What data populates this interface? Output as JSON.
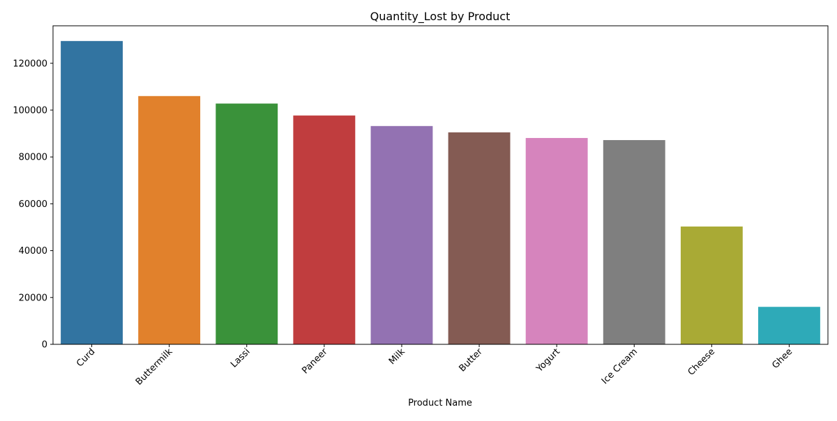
{
  "chart_data": {
    "type": "bar",
    "title": "Quantity_Lost by Product",
    "xlabel": "Product Name",
    "ylabel": "",
    "categories": [
      "Curd",
      "Buttermilk",
      "Lassi",
      "Paneer",
      "Milk",
      "Butter",
      "Yogurt",
      "Ice Cream",
      "Cheese",
      "Ghee"
    ],
    "values": [
      129500,
      106000,
      102800,
      97700,
      93200,
      90500,
      88100,
      87200,
      50300,
      16000
    ],
    "colors": [
      "#3274a1",
      "#e1812c",
      "#3a923a",
      "#c03d3e",
      "#9372b2",
      "#845b53",
      "#d684bd",
      "#7f7f7f",
      "#a9aa35",
      "#2eaab8"
    ],
    "ylim": [
      0,
      136000
    ],
    "yticks": [
      0,
      20000,
      40000,
      60000,
      80000,
      100000,
      120000
    ],
    "x_tick_rotation_deg": 45,
    "grid": false,
    "legend": "none"
  }
}
